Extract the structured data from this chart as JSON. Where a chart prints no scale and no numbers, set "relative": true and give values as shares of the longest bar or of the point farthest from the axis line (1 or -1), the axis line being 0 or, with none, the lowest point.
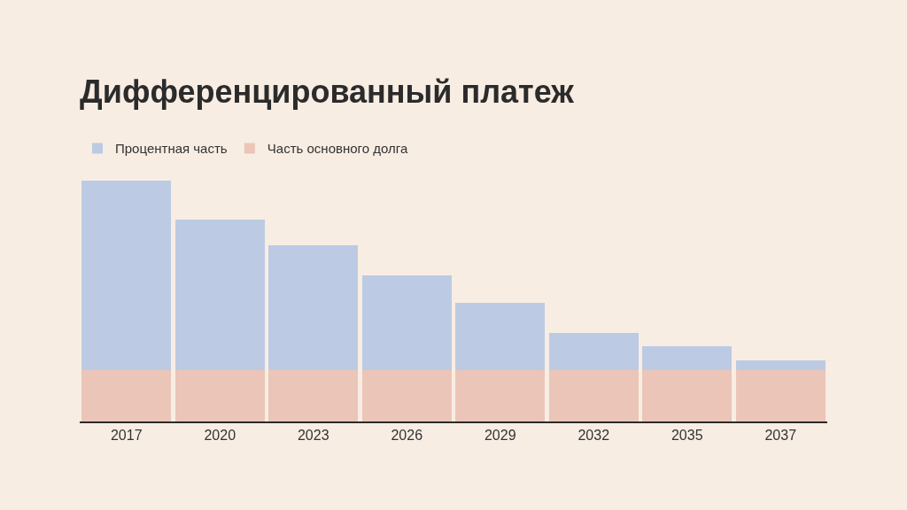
{
  "chart_data": {
    "type": "bar",
    "title": "Дифференцированный платеж",
    "categories": [
      "2017",
      "2020",
      "2023",
      "2026",
      "2029",
      "2032",
      "2035",
      "2037"
    ],
    "stacked": true,
    "relative": true,
    "legend": "top left",
    "grid": false,
    "series": [
      {
        "name": "Часть основного долга",
        "color": "#ebc5b8",
        "values": [
          0.212,
          0.212,
          0.212,
          0.212,
          0.212,
          0.212,
          0.212,
          0.212
        ]
      },
      {
        "name": "Процентная часть",
        "color": "#bccbe3",
        "values": [
          0.788,
          0.629,
          0.522,
          0.396,
          0.282,
          0.155,
          0.102,
          0.041
        ]
      }
    ]
  }
}
